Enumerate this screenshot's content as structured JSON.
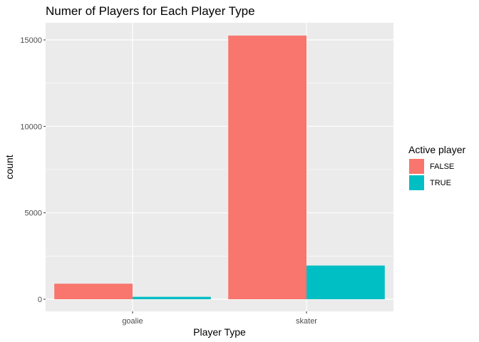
{
  "chart_data": {
    "type": "bar",
    "title": "Numer of Players for Each Player Type",
    "xlabel": "Player Type",
    "ylabel": "count",
    "categories": [
      "goalie",
      "skater"
    ],
    "series": [
      {
        "name": "FALSE",
        "color": "#F8766D",
        "values": [
          900,
          15250
        ]
      },
      {
        "name": "TRUE",
        "color": "#00BFC4",
        "values": [
          140,
          1950
        ]
      }
    ],
    "ylim": [
      0,
      16000
    ],
    "yticks": [
      0,
      5000,
      10000,
      15000
    ],
    "ytick_labels": [
      "0",
      "5000",
      "10000",
      "15000"
    ],
    "legend": {
      "title": "Active player",
      "position": "right"
    },
    "grid": true,
    "panel_background": "#EBEBEB"
  }
}
